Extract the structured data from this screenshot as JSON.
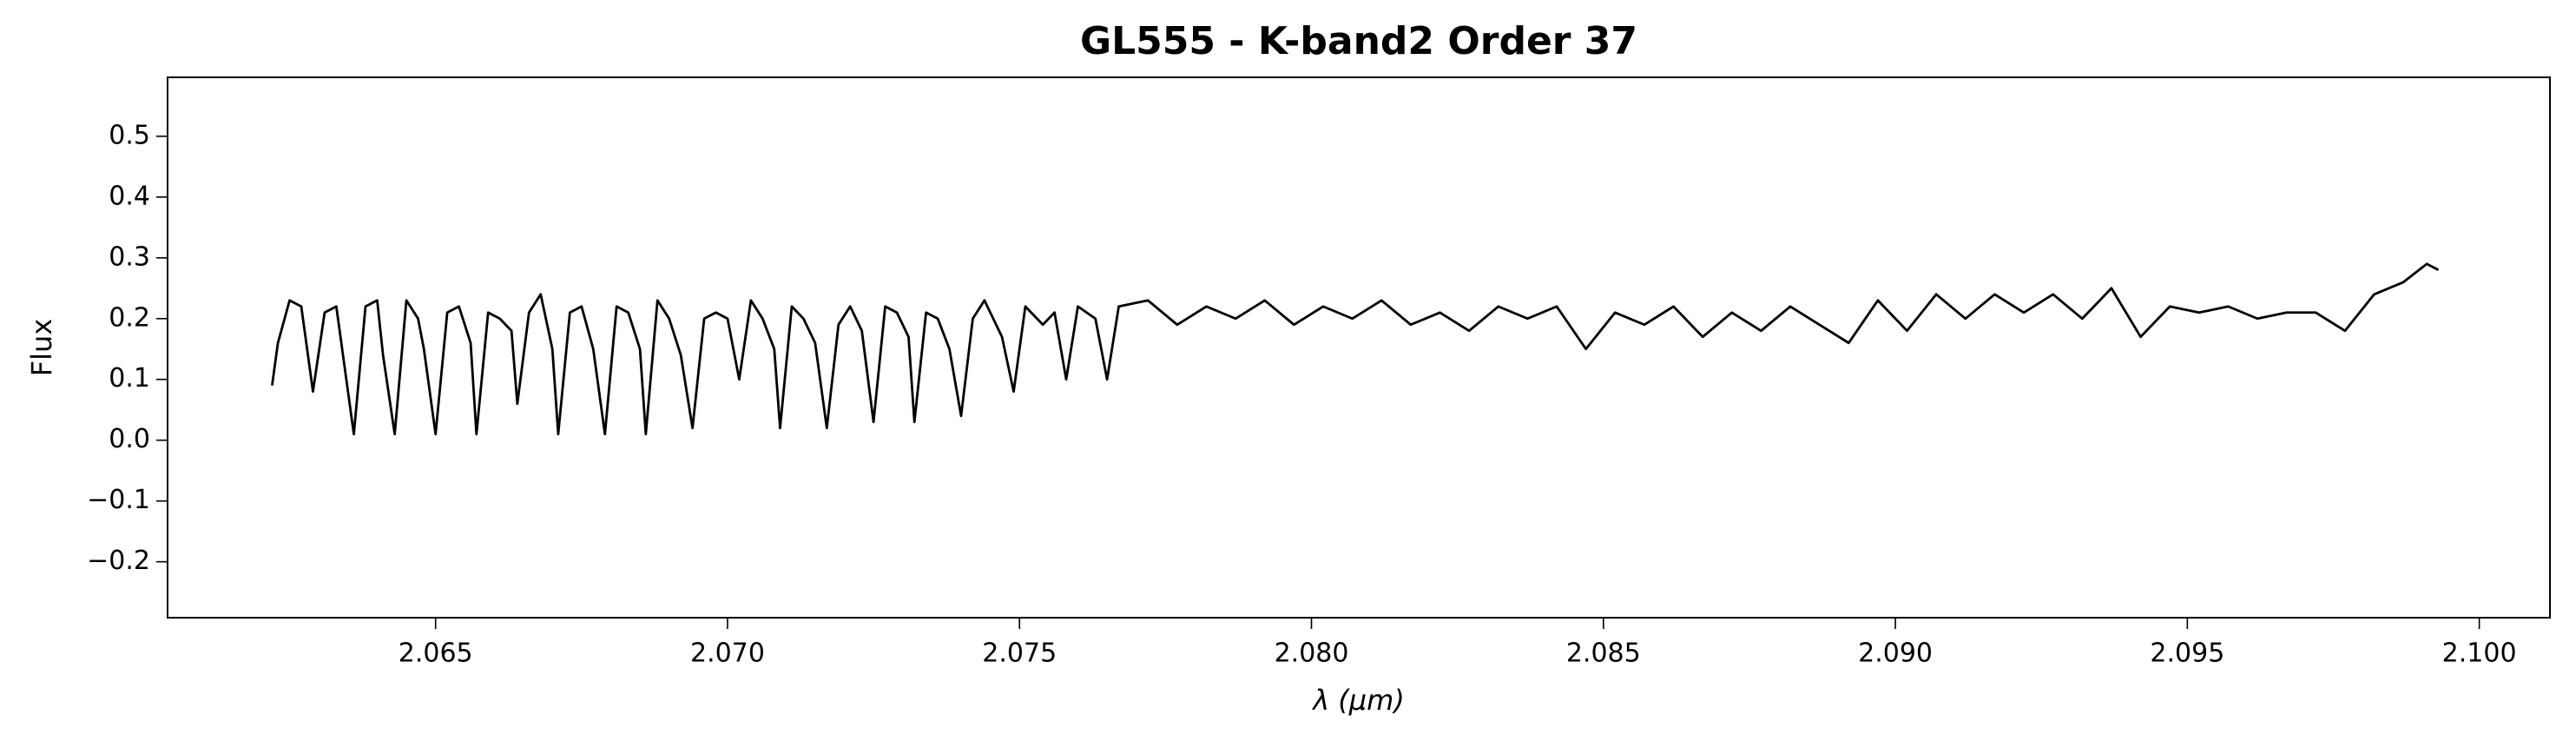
{
  "chart_data": {
    "type": "line",
    "title": "GL555 - K-band2 Order 37",
    "x_label": "λ (μm)",
    "y_label": "Flux",
    "color": "#000000",
    "xlim": [
      2.06041,
      2.10121
    ],
    "ylim": [
      -0.292,
      0.597
    ],
    "xticks": [
      {
        "value": 2.065,
        "label": "2.065"
      },
      {
        "value": 2.07,
        "label": "2.070"
      },
      {
        "value": 2.075,
        "label": "2.075"
      },
      {
        "value": 2.08,
        "label": "2.080"
      },
      {
        "value": 2.085,
        "label": "2.085"
      },
      {
        "value": 2.09,
        "label": "2.090"
      },
      {
        "value": 2.095,
        "label": "2.095"
      },
      {
        "value": 2.1,
        "label": "2.100"
      }
    ],
    "yticks": [
      {
        "value": -0.2,
        "label": "−0.2"
      },
      {
        "value": -0.1,
        "label": "−0.1"
      },
      {
        "value": 0,
        "label": "0.0"
      },
      0.1,
      0.2,
      0.3,
      0.4,
      0.5
    ],
    "grid": false,
    "x": [
      2.0622,
      2.0623,
      2.0625,
      2.0627,
      2.0629,
      2.0631,
      2.0633,
      2.0634,
      2.0636,
      2.0638,
      2.064,
      2.0641,
      2.0643,
      2.0645,
      2.0647,
      2.0648,
      2.065,
      2.0652,
      2.0654,
      2.0656,
      2.0657,
      2.0659,
      2.0661,
      2.0663,
      2.0664,
      2.0666,
      2.0668,
      2.067,
      2.0671,
      2.0673,
      2.0675,
      2.0677,
      2.0679,
      2.0681,
      2.0683,
      2.0685,
      2.0686,
      2.0688,
      2.069,
      2.0692,
      2.0694,
      2.0696,
      2.0698,
      2.07,
      2.0702,
      2.0704,
      2.0706,
      2.0708,
      2.0709,
      2.0711,
      2.0713,
      2.0715,
      2.0717,
      2.0719,
      2.0721,
      2.0723,
      2.0725,
      2.0727,
      2.0729,
      2.0731,
      2.0732,
      2.0734,
      2.0736,
      2.0738,
      2.074,
      2.0742,
      2.0744,
      2.0747,
      2.0749,
      2.0751,
      2.0754,
      2.0756,
      2.0758,
      2.076,
      2.0763,
      2.0765,
      2.0767,
      2.0772,
      2.0777,
      2.0782,
      2.0787,
      2.0792,
      2.0797,
      2.0802,
      2.0807,
      2.0812,
      2.0817,
      2.0822,
      2.0827,
      2.0832,
      2.0837,
      2.0842,
      2.0847,
      2.0852,
      2.0857,
      2.0862,
      2.0867,
      2.0872,
      2.0877,
      2.0882,
      2.0887,
      2.0892,
      2.0897,
      2.0902,
      2.0907,
      2.0912,
      2.0917,
      2.0922,
      2.0927,
      2.0932,
      2.0937,
      2.0942,
      2.0947,
      2.0952,
      2.0957,
      2.0962,
      2.0967,
      2.0972,
      2.0977,
      2.0982,
      2.0987,
      2.0991,
      2.0993
    ],
    "values": [
      0.09,
      0.16,
      0.23,
      0.22,
      0.08,
      0.21,
      0.22,
      0.15,
      0.01,
      0.22,
      0.23,
      0.14,
      0.01,
      0.23,
      0.2,
      0.15,
      0.01,
      0.21,
      0.22,
      0.16,
      0.01,
      0.21,
      0.2,
      0.18,
      0.06,
      0.21,
      0.24,
      0.15,
      0.01,
      0.21,
      0.22,
      0.15,
      0.01,
      0.22,
      0.21,
      0.15,
      0.01,
      0.23,
      0.2,
      0.14,
      0.02,
      0.2,
      0.21,
      0.2,
      0.1,
      0.23,
      0.2,
      0.15,
      0.02,
      0.22,
      0.2,
      0.16,
      0.02,
      0.19,
      0.22,
      0.18,
      0.03,
      0.22,
      0.21,
      0.17,
      0.03,
      0.21,
      0.2,
      0.15,
      0.04,
      0.2,
      0.23,
      0.17,
      0.08,
      0.22,
      0.19,
      0.21,
      0.1,
      0.22,
      0.2,
      0.1,
      0.22,
      0.23,
      0.19,
      0.22,
      0.2,
      0.23,
      0.19,
      0.22,
      0.2,
      0.23,
      0.19,
      0.21,
      0.18,
      0.22,
      0.2,
      0.22,
      0.15,
      0.21,
      0.19,
      0.22,
      0.17,
      0.21,
      0.18,
      0.22,
      0.19,
      0.16,
      0.23,
      0.18,
      0.24,
      0.2,
      0.24,
      0.21,
      0.24,
      0.2,
      0.25,
      0.17,
      0.22,
      0.21,
      0.22,
      0.2,
      0.21,
      0.21,
      0.18,
      0.24,
      0.26,
      0.29,
      0.28
    ]
  }
}
